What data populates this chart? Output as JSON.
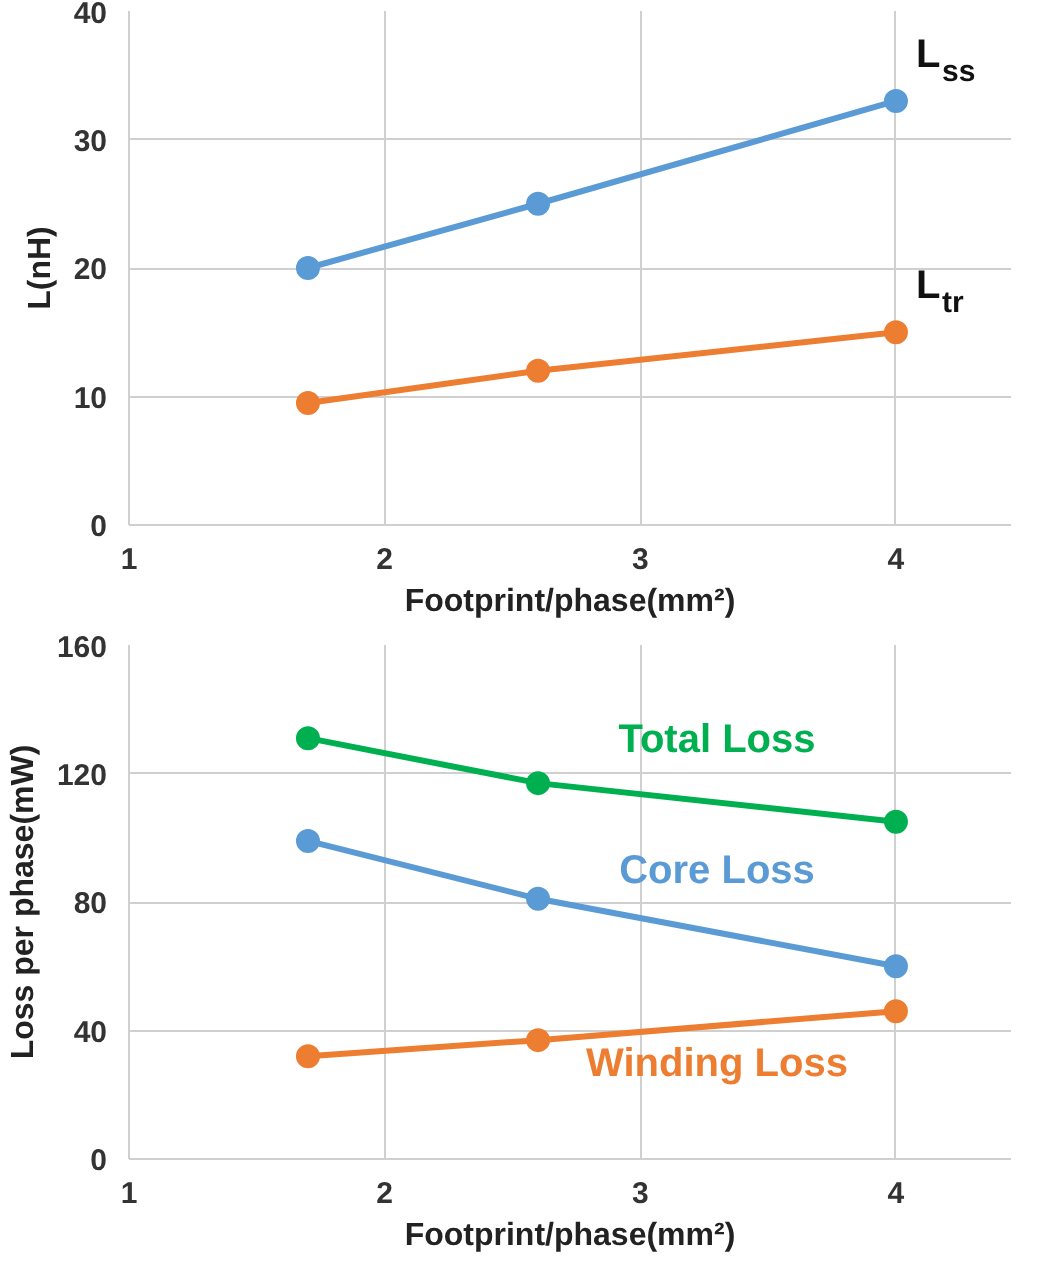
{
  "chart_data": [
    {
      "type": "line",
      "xlabel": "Footprint/phase(mm²)",
      "ylabel": "L(nH)",
      "x": [
        1.7,
        2.6,
        4
      ],
      "xlim": [
        1,
        4.45
      ],
      "xticks": [
        1,
        2,
        3,
        4
      ],
      "ylim": [
        0,
        40
      ],
      "yticks": [
        0,
        10,
        20,
        30,
        40
      ],
      "grid": true,
      "marker": "circle",
      "series": [
        {
          "name": "L$_{ss}$",
          "color": "#5b9bd5",
          "values": [
            20,
            25,
            33
          ]
        },
        {
          "name": "L$_{tr}$",
          "color": "#ed7d31",
          "values": [
            9.5,
            12,
            15
          ]
        }
      ]
    },
    {
      "type": "line",
      "xlabel": "Footprint/phase(mm²)",
      "ylabel": "Loss per phase(mW)",
      "x": [
        1.7,
        2.6,
        4
      ],
      "xlim": [
        1,
        4.45
      ],
      "xticks": [
        1,
        2,
        3,
        4
      ],
      "ylim": [
        0,
        160
      ],
      "yticks": [
        0,
        40,
        80,
        120,
        160
      ],
      "grid": true,
      "marker": "circle",
      "series": [
        {
          "name": "Total Loss",
          "color": "#00b050",
          "values": [
            131,
            117,
            105
          ]
        },
        {
          "name": "Core Loss",
          "color": "#5b9bd5",
          "values": [
            99,
            81,
            60
          ]
        },
        {
          "name": "Winding Loss",
          "color": "#ed7d31",
          "values": [
            32,
            37,
            46
          ]
        }
      ]
    }
  ]
}
